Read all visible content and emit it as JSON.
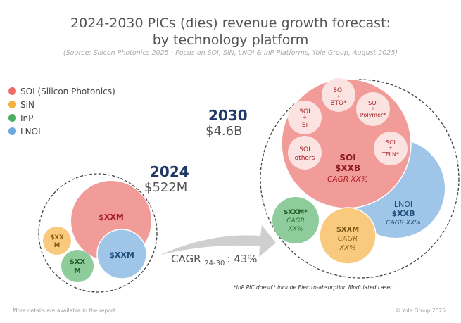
{
  "title": {
    "line1": "2024-2030 PICs (dies) revenue growth forecast:",
    "line2": "by technology platform"
  },
  "source": "(Source: Silicon Photonics 2025 - Focus on SOI, SiN, LNOI & InP Platforms, Yole Group, August 2025)",
  "legend": [
    {
      "label": "SOI (Silicon Photonics)",
      "color": "#ee6b67"
    },
    {
      "label": "SiN",
      "color": "#f5b041"
    },
    {
      "label": "InP",
      "color": "#4caf60"
    },
    {
      "label": "LNOI",
      "color": "#6fa8dc"
    }
  ],
  "y2024": {
    "year": "2024",
    "total": "$522M",
    "soi": "$XXM",
    "lnoi": "$XXM",
    "sin": [
      "$XX",
      "M"
    ],
    "inp": [
      "$XX",
      "M"
    ]
  },
  "y2030": {
    "year": "2030",
    "total": "$4.6B",
    "soi": {
      "name": "SOI",
      "value": "$XXB",
      "cagr": "CAGR XX%"
    },
    "lnoi": {
      "name": "LNOI",
      "value": "$XXB",
      "cagr": "CAGR XX%"
    },
    "inp": {
      "value": "$XXM*",
      "cagr1": "CAGR",
      "cagr2": "XX%"
    },
    "sin": {
      "value": "$XXM",
      "cagr1": "CAGR",
      "cagr2": "XX%"
    },
    "soi_sub": [
      [
        "SOI",
        "+",
        "BTO*"
      ],
      [
        "SOI",
        "+",
        "Polymer*"
      ],
      [
        "SOI",
        "+",
        "Si"
      ],
      [
        "SOI",
        "others"
      ],
      [
        "SOI",
        "+",
        "TFLN*"
      ]
    ]
  },
  "cagr": {
    "label": "CAGR",
    "sub": "24-30",
    "value": ": 43%"
  },
  "footnote": "*InP PIC doesn't include Electro-absorption Modulated Laser",
  "footer_left": "More details are available in the report",
  "footer_right": "© Yole Group 2025"
}
